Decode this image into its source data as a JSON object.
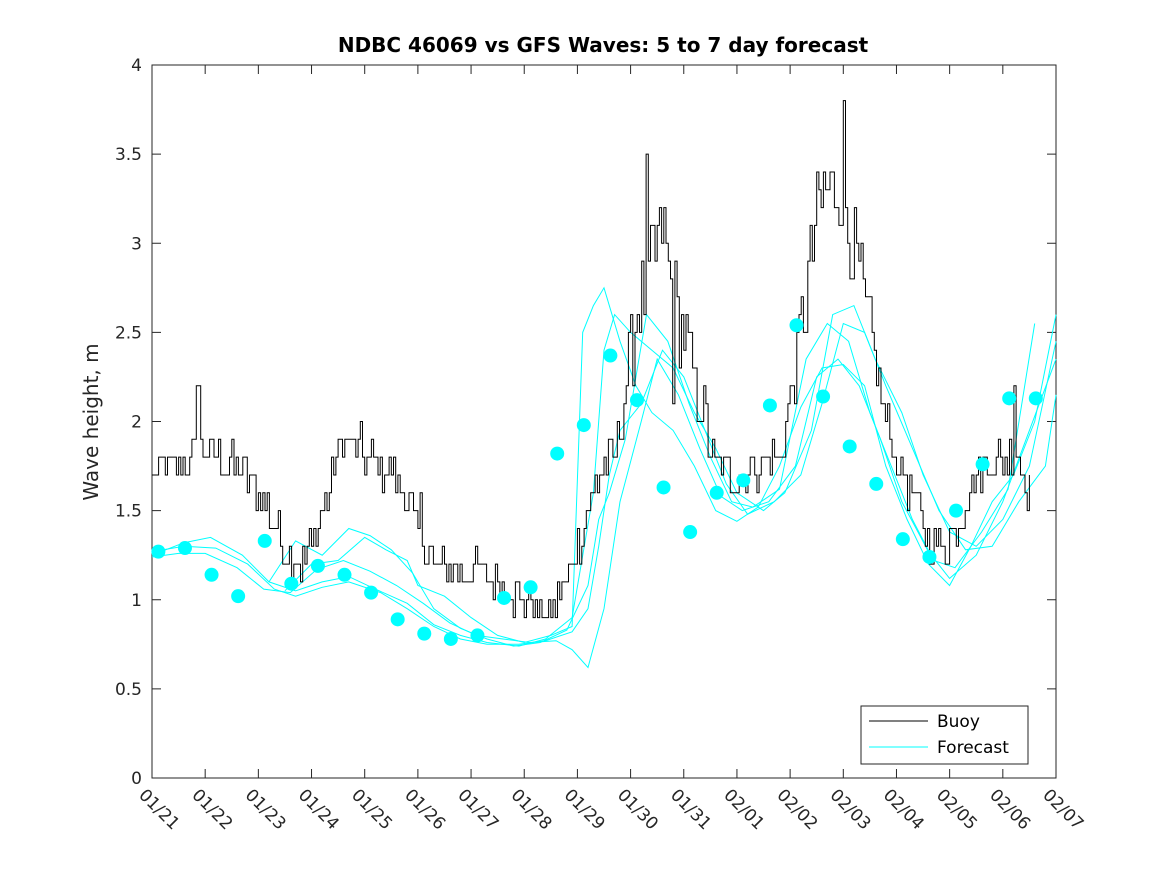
{
  "chart_data": {
    "type": "line",
    "title": "NDBC 46069 vs GFS Waves: 5 to 7 day forecast",
    "xlabel": "",
    "ylabel": "Wave height, m",
    "xlim": [
      0,
      17
    ],
    "ylim": [
      0,
      4
    ],
    "yticks": [
      0,
      0.5,
      1,
      1.5,
      2,
      2.5,
      3,
      3.5,
      4
    ],
    "yticklabels": [
      "0",
      "0.5",
      "1",
      "1.5",
      "2",
      "2.5",
      "3",
      "3.5",
      "4"
    ],
    "xticks": [
      0,
      1,
      2,
      3,
      4,
      5,
      6,
      7,
      8,
      9,
      10,
      11,
      12,
      13,
      14,
      15,
      16,
      17
    ],
    "xticklabels": [
      "01/21",
      "01/22",
      "01/23",
      "01/24",
      "01/25",
      "01/26",
      "01/27",
      "01/28",
      "01/29",
      "01/30",
      "01/31",
      "02/01",
      "02/02",
      "02/03",
      "02/04",
      "02/05",
      "02/06",
      "02/07"
    ],
    "legend": {
      "location": "bottom-right",
      "entries": [
        "Buoy",
        "Forecast"
      ]
    },
    "colors": {
      "buoy": "#000000",
      "forecast": "#00ffff",
      "axis": "#262626"
    },
    "buoy_anchors": {
      "x": [
        0,
        0.5,
        0.9,
        1.2,
        1.5,
        1.9,
        2.2,
        2.5,
        2.8,
        3.0,
        3.3,
        3.6,
        3.9,
        4.2,
        4.6,
        5.0,
        5.3,
        5.6,
        5.9,
        6.2,
        6.5,
        6.9,
        7.1,
        7.4,
        7.7,
        8.0,
        8.2,
        8.4,
        8.7,
        8.9,
        9.1,
        9.3,
        9.6,
        9.8,
        10.0,
        10.2,
        10.4,
        10.6,
        10.8,
        11.0,
        11.4,
        11.8,
        12.0,
        12.3,
        12.5,
        12.7,
        12.9,
        13.1,
        13.3,
        13.5,
        13.8,
        14.0,
        14.3,
        14.6,
        14.9,
        15.1,
        15.4,
        15.7,
        16.0,
        16.3,
        16.5
      ],
      "y": [
        1.7,
        1.75,
        1.8,
        1.8,
        1.75,
        1.65,
        1.5,
        1.25,
        1.2,
        1.3,
        1.6,
        1.9,
        1.85,
        1.75,
        1.7,
        1.4,
        1.2,
        1.2,
        1.15,
        1.15,
        1.1,
        1.0,
        1.0,
        0.9,
        1.05,
        1.3,
        1.5,
        1.7,
        1.8,
        2.2,
        2.6,
        2.8,
        3.1,
        2.7,
        2.5,
        2.2,
        2.0,
        1.75,
        1.7,
        1.7,
        1.75,
        1.8,
        2.1,
        2.7,
        3.2,
        3.3,
        3.3,
        3.1,
        2.8,
        2.5,
        2.0,
        1.75,
        1.6,
        1.35,
        1.3,
        1.4,
        1.65,
        1.75,
        1.8,
        1.8,
        1.6
      ],
      "spikes": [
        [
          0.85,
          2.2
        ],
        [
          5.05,
          1.6
        ],
        [
          9.3,
          3.5
        ],
        [
          13.0,
          3.8
        ],
        [
          9.8,
          2.1
        ],
        [
          16.2,
          2.2
        ]
      ]
    },
    "forecast_markers": {
      "x": [
        0.12,
        0.62,
        1.12,
        1.62,
        2.12,
        2.62,
        3.12,
        3.62,
        4.12,
        4.62,
        5.12,
        5.62,
        6.12,
        6.62,
        7.12,
        7.62,
        8.12,
        8.62,
        9.12,
        9.62,
        10.12,
        10.62,
        11.12,
        11.62,
        12.12,
        12.62,
        13.12,
        13.62,
        14.12,
        14.62,
        15.12,
        15.62,
        16.12,
        16.62
      ],
      "y": [
        1.27,
        1.29,
        1.14,
        1.02,
        1.33,
        1.09,
        1.19,
        1.14,
        1.04,
        0.89,
        0.81,
        0.78,
        0.8,
        1.01,
        1.07,
        1.82,
        1.98,
        2.37,
        2.12,
        1.63,
        1.38,
        1.6,
        1.67,
        2.09,
        2.54,
        2.14,
        1.86,
        1.65,
        1.34,
        1.24,
        1.5,
        1.76,
        2.13,
        2.13
      ]
    },
    "forecast_runs": [
      {
        "x": [
          0,
          0.6,
          1.2,
          1.8,
          2.3,
          2.7,
          3.2,
          3.7,
          4.3,
          4.8,
          5.3,
          5.8,
          6.3,
          6.9,
          7.4,
          7.9,
          8.2,
          8.4,
          8.6,
          8.8,
          9.2,
          9.6,
          10.0,
          10.4,
          10.8,
          11.2,
          11.7,
          12.2,
          12.6,
          13.0,
          13.4,
          13.8,
          14.3,
          14.8,
          15.3,
          15.8,
          16.3,
          16.8,
          17.0
        ],
        "y": [
          1.27,
          1.3,
          1.29,
          1.2,
          1.06,
          1.02,
          1.07,
          1.1,
          1.04,
          0.95,
          0.85,
          0.78,
          0.75,
          0.75,
          0.77,
          0.82,
          0.95,
          1.3,
          1.7,
          1.95,
          2.1,
          2.4,
          2.25,
          1.95,
          1.65,
          1.48,
          1.55,
          1.7,
          2.1,
          2.55,
          2.5,
          2.2,
          1.85,
          1.5,
          1.28,
          1.3,
          1.55,
          1.75,
          2.15
        ]
      },
      {
        "x": [
          0,
          0.6,
          1.1,
          1.7,
          2.2,
          2.7,
          3.2,
          3.7,
          4.2,
          4.8,
          5.3,
          5.8,
          6.3,
          6.9,
          7.4,
          7.9,
          8.3,
          8.5,
          8.7,
          9.0,
          9.4,
          9.8,
          10.2,
          10.6,
          11.0,
          11.5,
          11.9,
          12.4,
          12.8,
          13.2,
          13.6,
          14.1,
          14.5,
          15.0,
          15.5,
          16.0,
          16.5,
          17.0
        ],
        "y": [
          1.25,
          1.32,
          1.35,
          1.25,
          1.1,
          1.05,
          1.1,
          1.13,
          1.06,
          0.98,
          0.86,
          0.8,
          0.76,
          0.74,
          0.78,
          0.9,
          1.6,
          2.4,
          2.6,
          2.5,
          2.4,
          2.3,
          2.05,
          1.85,
          1.6,
          1.5,
          1.6,
          1.95,
          2.6,
          2.65,
          2.35,
          2.05,
          1.7,
          1.38,
          1.3,
          1.45,
          1.75,
          2.45
        ]
      },
      {
        "x": [
          0,
          0.5,
          1.0,
          1.6,
          2.1,
          2.6,
          3.1,
          3.6,
          4.1,
          4.6,
          5.1,
          5.6,
          6.1,
          6.6,
          7.1,
          7.6,
          7.9,
          8.2,
          8.5,
          8.8,
          9.2,
          9.5,
          9.9,
          10.3,
          10.7,
          11.1,
          11.6,
          12.1,
          12.5,
          12.9,
          13.3,
          13.7,
          14.1,
          14.6,
          15.0,
          15.5,
          16.0,
          16.5,
          17.0
        ],
        "y": [
          1.24,
          1.26,
          1.26,
          1.18,
          1.06,
          1.04,
          1.17,
          1.22,
          1.16,
          1.08,
          0.98,
          0.87,
          0.8,
          0.78,
          0.76,
          0.77,
          0.72,
          0.62,
          0.95,
          1.55,
          2.0,
          2.35,
          2.15,
          1.85,
          1.58,
          1.5,
          1.55,
          1.75,
          2.25,
          2.35,
          2.2,
          1.9,
          1.55,
          1.27,
          1.12,
          1.25,
          1.55,
          1.95,
          2.35
        ]
      },
      {
        "x": [
          2.2,
          2.7,
          3.2,
          3.7,
          4.1,
          4.5,
          4.9,
          5.3,
          5.8,
          6.3,
          6.8,
          7.3,
          7.8,
          8.2,
          8.4,
          8.6,
          8.9,
          9.3,
          9.7,
          10.1,
          10.5,
          10.9,
          11.3,
          11.8,
          12.3,
          12.7,
          13.1,
          13.5,
          13.9,
          14.3,
          14.7,
          15.1,
          15.6,
          16.1,
          16.6
        ],
        "y": [
          1.1,
          1.33,
          1.25,
          1.4,
          1.36,
          1.28,
          1.15,
          0.95,
          0.84,
          0.78,
          0.74,
          0.76,
          0.83,
          1.08,
          1.45,
          1.6,
          1.9,
          2.6,
          2.45,
          2.1,
          1.8,
          1.55,
          1.52,
          1.62,
          2.35,
          2.55,
          2.45,
          2.05,
          1.75,
          1.45,
          1.22,
          1.18,
          1.38,
          1.62,
          2.55
        ]
      },
      {
        "x": [
          2.5,
          3.0,
          3.5,
          4.0,
          4.4,
          4.8,
          5.0,
          5.5,
          6.0,
          6.5,
          7.0,
          7.5,
          7.9,
          8.1,
          8.3,
          8.5,
          8.8,
          9.1,
          9.4,
          9.8,
          10.2,
          10.6,
          11.0,
          11.4,
          11.8,
          12.2,
          12.6,
          13.0,
          13.4,
          13.8,
          14.2,
          14.6,
          15.0,
          15.4,
          15.8,
          16.2,
          16.6,
          17.0
        ],
        "y": [
          1.05,
          1.2,
          1.22,
          1.35,
          1.28,
          1.22,
          1.08,
          1.02,
          0.9,
          0.8,
          0.76,
          0.8,
          0.85,
          2.5,
          2.65,
          2.75,
          2.45,
          2.2,
          2.05,
          1.95,
          1.75,
          1.5,
          1.44,
          1.52,
          1.75,
          2.08,
          2.3,
          2.32,
          2.2,
          1.75,
          1.45,
          1.2,
          1.08,
          1.3,
          1.55,
          1.7,
          2.0,
          2.6
        ]
      }
    ]
  }
}
